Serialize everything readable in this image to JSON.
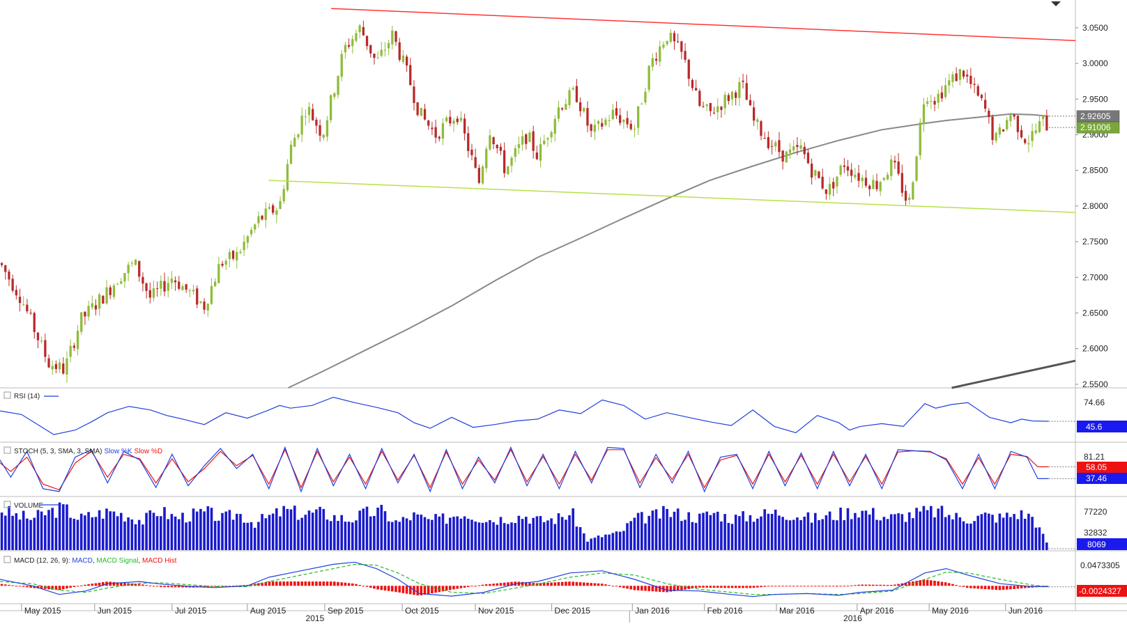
{
  "chart_data": {
    "type": "candlestick",
    "price_panel": {
      "y_ticks": [
        "3.0500",
        "3.0000",
        "2.9500",
        "2.9000",
        "2.8500",
        "2.8000",
        "2.7500",
        "2.7000",
        "2.6500",
        "2.6000",
        "2.5500"
      ],
      "ylim": [
        2.545,
        3.085
      ],
      "badges": [
        {
          "label": "2.92605",
          "value": 2.92605,
          "color": "#777777"
        },
        {
          "label": "2.91006",
          "value": 2.91006,
          "color": "#7aa73a"
        }
      ],
      "trendlines": [
        {
          "name": "resistance",
          "color": "#ff3333",
          "x0": 0.308,
          "y0": 3.077,
          "x1": 1.0,
          "y1": 3.032
        },
        {
          "name": "support",
          "color": "#b8e04a",
          "x0": 0.25,
          "y0": 2.836,
          "x1": 1.0,
          "y1": 2.791
        },
        {
          "name": "long-term",
          "color": "#555555",
          "x0": 0.885,
          "y0": 2.545,
          "x1": 1.0,
          "y1": 2.583
        }
      ],
      "moving_average": {
        "color": "#888888",
        "x": [
          0.268,
          0.3,
          0.34,
          0.38,
          0.42,
          0.46,
          0.5,
          0.54,
          0.58,
          0.62,
          0.66,
          0.7,
          0.74,
          0.78,
          0.82,
          0.86,
          0.88,
          0.9,
          0.92,
          0.94,
          0.96,
          0.975
        ],
        "y": [
          2.545,
          2.568,
          2.598,
          2.628,
          2.66,
          2.695,
          2.728,
          2.755,
          2.783,
          2.81,
          2.836,
          2.856,
          2.875,
          2.892,
          2.907,
          2.916,
          2.92,
          2.923,
          2.926,
          2.929,
          2.928,
          2.926
        ]
      },
      "candle_anchors": {
        "x": [
          0.0,
          0.02,
          0.045,
          0.06,
          0.075,
          0.1,
          0.11,
          0.125,
          0.14,
          0.16,
          0.175,
          0.19,
          0.205,
          0.22,
          0.24,
          0.26,
          0.27,
          0.285,
          0.3,
          0.32,
          0.335,
          0.35,
          0.365,
          0.38,
          0.39,
          0.405,
          0.425,
          0.44,
          0.445,
          0.455,
          0.47,
          0.49,
          0.5,
          0.52,
          0.535,
          0.55,
          0.57,
          0.59,
          0.605,
          0.62,
          0.635,
          0.65,
          0.66,
          0.675,
          0.69,
          0.7,
          0.715,
          0.73,
          0.745,
          0.755,
          0.77,
          0.785,
          0.8,
          0.815,
          0.83,
          0.845,
          0.86,
          0.87,
          0.88,
          0.895,
          0.91,
          0.915,
          0.925,
          0.94,
          0.955,
          0.97,
          0.975
        ],
        "y": [
          2.72,
          2.67,
          2.58,
          2.57,
          2.64,
          2.68,
          2.7,
          2.72,
          2.67,
          2.7,
          2.68,
          2.66,
          2.72,
          2.73,
          2.78,
          2.8,
          2.88,
          2.94,
          2.9,
          3.02,
          3.05,
          3.0,
          3.04,
          2.98,
          2.93,
          2.9,
          2.93,
          2.86,
          2.83,
          2.91,
          2.85,
          2.9,
          2.87,
          2.94,
          2.96,
          2.9,
          2.93,
          2.91,
          3.0,
          3.04,
          3.01,
          2.94,
          2.93,
          2.95,
          2.97,
          2.92,
          2.89,
          2.87,
          2.88,
          2.85,
          2.82,
          2.86,
          2.84,
          2.83,
          2.86,
          2.8,
          2.96,
          2.95,
          2.97,
          2.99,
          2.95,
          2.94,
          2.89,
          2.93,
          2.89,
          2.92,
          2.91
        ]
      }
    },
    "rsi": {
      "label": "RSI (14)",
      "tick": "74.66",
      "last": "45.6",
      "color": "#1f3fdd",
      "x": [
        0.0,
        0.02,
        0.05,
        0.07,
        0.085,
        0.1,
        0.12,
        0.14,
        0.155,
        0.17,
        0.19,
        0.21,
        0.23,
        0.25,
        0.26,
        0.27,
        0.29,
        0.31,
        0.33,
        0.35,
        0.37,
        0.385,
        0.4,
        0.42,
        0.44,
        0.46,
        0.48,
        0.5,
        0.52,
        0.54,
        0.56,
        0.58,
        0.6,
        0.62,
        0.64,
        0.66,
        0.68,
        0.7,
        0.72,
        0.74,
        0.76,
        0.78,
        0.79,
        0.8,
        0.82,
        0.84,
        0.86,
        0.87,
        0.885,
        0.9,
        0.92,
        0.94,
        0.95,
        0.96,
        0.975
      ],
      "y": [
        57,
        53,
        31,
        36,
        45,
        55,
        62,
        58,
        52,
        48,
        42,
        55,
        49,
        58,
        63,
        60,
        63,
        72,
        66,
        61,
        55,
        44,
        38,
        50,
        39,
        42,
        46,
        48,
        58,
        54,
        69,
        63,
        48,
        55,
        50,
        45,
        41,
        58,
        40,
        33,
        52,
        44,
        36,
        40,
        43,
        40,
        65,
        60,
        64,
        66,
        50,
        44,
        48,
        46,
        45.6
      ]
    },
    "stoch": {
      "label": "STOCH (5, 3, SMA, 3, SMA)",
      "k_name": "Slow %K",
      "d_name": "Slow %D",
      "tick": "81.21",
      "last_d": "58.05",
      "last_k": "37.46",
      "k_color": "#1f3fdd",
      "d_color": "#ee1111",
      "x": [
        0.0,
        0.01,
        0.025,
        0.04,
        0.055,
        0.07,
        0.085,
        0.1,
        0.115,
        0.13,
        0.145,
        0.16,
        0.175,
        0.19,
        0.205,
        0.22,
        0.235,
        0.25,
        0.265,
        0.28,
        0.295,
        0.31,
        0.325,
        0.34,
        0.355,
        0.37,
        0.385,
        0.4,
        0.415,
        0.43,
        0.445,
        0.46,
        0.475,
        0.49,
        0.505,
        0.52,
        0.535,
        0.55,
        0.565,
        0.58,
        0.595,
        0.61,
        0.625,
        0.64,
        0.655,
        0.67,
        0.685,
        0.7,
        0.715,
        0.73,
        0.745,
        0.76,
        0.775,
        0.79,
        0.805,
        0.82,
        0.835,
        0.85,
        0.865,
        0.88,
        0.895,
        0.91,
        0.925,
        0.94,
        0.955,
        0.965,
        0.975
      ],
      "k": [
        70,
        40,
        85,
        20,
        15,
        75,
        88,
        30,
        85,
        70,
        22,
        80,
        25,
        60,
        90,
        55,
        80,
        20,
        92,
        15,
        90,
        25,
        80,
        20,
        90,
        30,
        80,
        15,
        88,
        20,
        75,
        30,
        92,
        25,
        80,
        20,
        85,
        30,
        92,
        90,
        22,
        80,
        30,
        85,
        15,
        75,
        80,
        20,
        85,
        25,
        82,
        20,
        85,
        25,
        80,
        20,
        88,
        86,
        85,
        70,
        20,
        80,
        20,
        85,
        75,
        37.46,
        37.46
      ],
      "d": [
        65,
        50,
        75,
        28,
        18,
        65,
        85,
        40,
        80,
        72,
        30,
        72,
        32,
        55,
        85,
        60,
        78,
        28,
        88,
        22,
        85,
        32,
        75,
        28,
        85,
        35,
        78,
        22,
        84,
        28,
        70,
        35,
        88,
        32,
        76,
        28,
        80,
        35,
        88,
        88,
        30,
        74,
        36,
        80,
        22,
        70,
        78,
        28,
        80,
        32,
        78,
        28,
        80,
        32,
        76,
        28,
        84,
        86,
        84,
        72,
        28,
        74,
        28,
        80,
        76,
        58.05,
        58.05
      ]
    },
    "volume": {
      "label": "VOLUME",
      "ticks": [
        "77220",
        "32832"
      ],
      "last": "8069",
      "color": "#1a1acc",
      "ylim": [
        0,
        98000
      ],
      "values": [
        78000,
        66000,
        60000,
        72000,
        80000,
        60000,
        68000,
        74000,
        66000,
        56000,
        76000,
        62000,
        66000,
        72000,
        60000,
        70000,
        52000,
        64000,
        76000,
        68000,
        72000,
        64000,
        58000,
        70000,
        74000,
        52000,
        66000,
        56000,
        60000,
        72000,
        64000,
        58000,
        62000,
        66000,
        56000,
        60000,
        70000,
        18000,
        28000,
        32000,
        60000,
        64000,
        72000,
        68000,
        62000,
        72000,
        60000,
        64000,
        68000,
        72000,
        68000,
        60000,
        64000,
        70000,
        76000,
        70000,
        62000,
        66000,
        72000,
        74000,
        64000,
        60000,
        66000,
        62000,
        70000,
        64000,
        8069
      ]
    },
    "macd": {
      "label": "MACD (12, 26, 9)",
      "macd_name": "MACD",
      "signal_name": "MACD Signal",
      "hist_name": "MACD Hist",
      "tick": "0.0473305",
      "last": "-0.0024327",
      "macd_color": "#1f3fdd",
      "signal_color": "#22bb22",
      "hist_color": "#ee1111",
      "ylim": [
        -0.04,
        0.075
      ],
      "x": [
        0.0,
        0.03,
        0.055,
        0.08,
        0.1,
        0.13,
        0.15,
        0.18,
        0.2,
        0.23,
        0.25,
        0.28,
        0.31,
        0.33,
        0.35,
        0.37,
        0.39,
        0.42,
        0.45,
        0.48,
        0.5,
        0.53,
        0.56,
        0.59,
        0.62,
        0.65,
        0.68,
        0.7,
        0.72,
        0.75,
        0.78,
        0.8,
        0.83,
        0.86,
        0.88,
        0.9,
        0.93,
        0.96,
        0.975
      ],
      "m": [
        0.015,
        0.0,
        -0.02,
        -0.012,
        0.005,
        0.01,
        0.004,
        -0.002,
        -0.004,
        0.0,
        0.02,
        0.035,
        0.05,
        0.055,
        0.04,
        0.015,
        -0.018,
        -0.024,
        -0.015,
        0.005,
        0.01,
        0.03,
        0.035,
        0.015,
        -0.01,
        -0.012,
        -0.02,
        -0.025,
        -0.02,
        -0.018,
        -0.022,
        -0.015,
        -0.01,
        0.03,
        0.04,
        0.025,
        0.005,
        -0.002,
        -0.002
      ],
      "s": [
        0.01,
        0.005,
        -0.01,
        -0.015,
        -0.005,
        0.006,
        0.007,
        0.002,
        -0.002,
        -0.002,
        0.01,
        0.025,
        0.04,
        0.05,
        0.048,
        0.03,
        0.005,
        -0.015,
        -0.018,
        -0.005,
        0.004,
        0.02,
        0.03,
        0.025,
        0.005,
        -0.008,
        -0.015,
        -0.02,
        -0.02,
        -0.018,
        -0.02,
        -0.018,
        -0.012,
        0.015,
        0.032,
        0.03,
        0.015,
        0.002,
        -0.002
      ]
    },
    "x_axis": {
      "months": [
        {
          "label": "May 2015",
          "pos": 0.02
        },
        {
          "label": "Jun 2015",
          "pos": 0.088
        },
        {
          "label": "Jul 2015",
          "pos": 0.16
        },
        {
          "label": "Aug 2015",
          "pos": 0.23
        },
        {
          "label": "Sep 2015",
          "pos": 0.302
        },
        {
          "label": "Oct 2015",
          "pos": 0.374
        },
        {
          "label": "Nov 2015",
          "pos": 0.442
        },
        {
          "label": "Dec 2015",
          "pos": 0.513
        },
        {
          "label": "Jan 2016",
          "pos": 0.588
        },
        {
          "label": "Feb 2016",
          "pos": 0.655
        },
        {
          "label": "Mar 2016",
          "pos": 0.722
        },
        {
          "label": "Apr 2016",
          "pos": 0.797
        },
        {
          "label": "May 2016",
          "pos": 0.864
        },
        {
          "label": "Jun 2016",
          "pos": 0.935
        }
      ],
      "years": [
        {
          "label": "2015",
          "pos": 0.292
        },
        {
          "label": "2016",
          "pos": 0.792
        }
      ]
    }
  }
}
